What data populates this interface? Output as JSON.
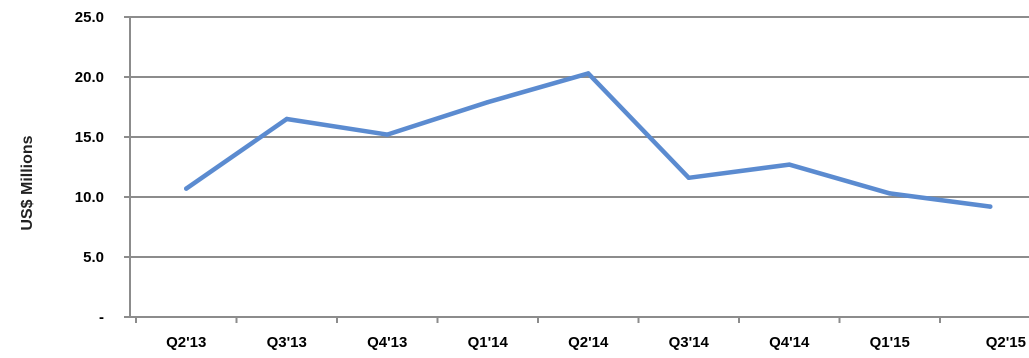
{
  "chart_data": {
    "type": "line",
    "title": "",
    "xlabel": "",
    "ylabel": "US$ Millions",
    "categories": [
      "Q2'13",
      "Q3'13",
      "Q4'13",
      "Q1'14",
      "Q2'14",
      "Q3'14",
      "Q4'14",
      "Q1'15",
      "Q2'15"
    ],
    "series": [
      {
        "values": [
          10.7,
          16.5,
          15.2,
          17.9,
          20.3,
          11.6,
          12.7,
          10.3,
          9.2
        ]
      }
    ],
    "ylim": [
      0,
      25
    ],
    "yticks": [
      0,
      5,
      10,
      15,
      20,
      25
    ],
    "ytick_labels": [
      "-",
      "5.0",
      "10.0",
      "15.0",
      "20.0",
      "25.0"
    ],
    "grid": true,
    "legend": "none",
    "colors": {
      "line": "#5b8bd0",
      "grid": "#8c8c8c",
      "axis": "#8c8c8c"
    }
  }
}
